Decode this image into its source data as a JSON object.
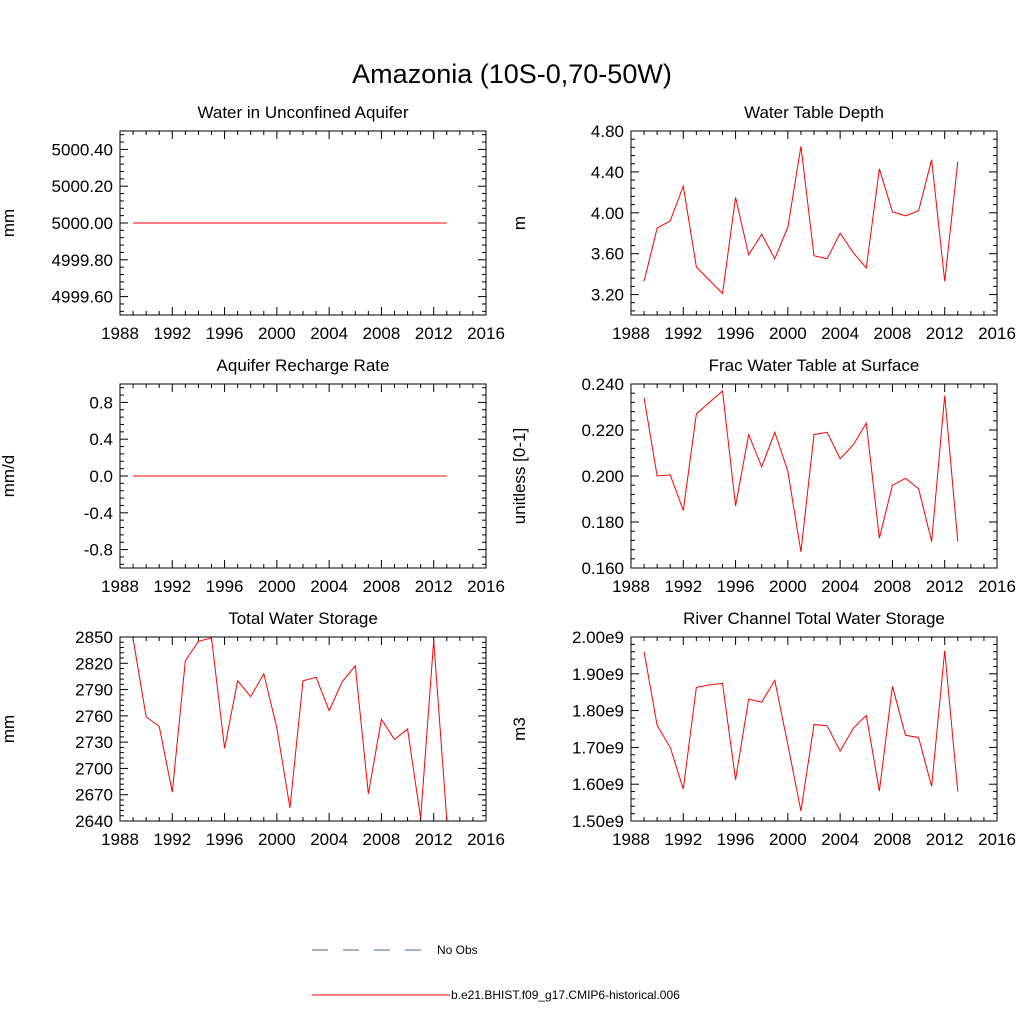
{
  "figure_title": "Amazonia (10S-0,70-50W)",
  "colors": {
    "model": "#ff0000",
    "obs": "#4f5fa8",
    "axis": "#000000"
  },
  "legend": {
    "obs_label": "No Obs",
    "model_label": "b.e21.BHIST.f09_g17.CMIP6-historical.006"
  },
  "chart_data": [
    {
      "type": "line",
      "title": "Water in Unconfined Aquifer",
      "ylabel": "mm",
      "xlim": [
        1988,
        2016
      ],
      "xticks": [
        "1988",
        "1992",
        "1996",
        "2000",
        "2004",
        "2008",
        "2012",
        "2016"
      ],
      "ylim": [
        4999.5,
        5000.5
      ],
      "yticks": [
        4999.6,
        4999.8,
        5000.0,
        5000.2,
        5000.4
      ],
      "ydecimals": 2,
      "x": [
        1989,
        1990,
        1991,
        1992,
        1993,
        1994,
        1995,
        1996,
        1997,
        1998,
        1999,
        2000,
        2001,
        2002,
        2003,
        2004,
        2005,
        2006,
        2007,
        2008,
        2009,
        2010,
        2011,
        2012,
        2013
      ],
      "series": [
        {
          "name": "b.e21.BHIST.f09_g17.CMIP6-historical.006",
          "values": [
            5000,
            5000,
            5000,
            5000,
            5000,
            5000,
            5000,
            5000,
            5000,
            5000,
            5000,
            5000,
            5000,
            5000,
            5000,
            5000,
            5000,
            5000,
            5000,
            5000,
            5000,
            5000,
            5000,
            5000,
            5000
          ]
        }
      ]
    },
    {
      "type": "line",
      "title": "Water Table Depth",
      "ylabel": "m",
      "xlim": [
        1988,
        2016
      ],
      "xticks": [
        "1988",
        "1992",
        "1996",
        "2000",
        "2004",
        "2008",
        "2012",
        "2016"
      ],
      "ylim": [
        3.0,
        4.8
      ],
      "yticks": [
        3.2,
        3.6,
        4.0,
        4.4,
        4.8
      ],
      "ydecimals": 2,
      "x": [
        1989,
        1990,
        1991,
        1992,
        1993,
        1994,
        1995,
        1996,
        1997,
        1998,
        1999,
        2000,
        2001,
        2002,
        2003,
        2004,
        2005,
        2006,
        2007,
        2008,
        2009,
        2010,
        2011,
        2012,
        2013
      ],
      "series": [
        {
          "name": "b.e21.BHIST.f09_g17.CMIP6-historical.006",
          "values": [
            3.33,
            3.85,
            3.92,
            4.26,
            3.47,
            3.34,
            3.21,
            4.15,
            3.59,
            3.79,
            3.55,
            3.86,
            4.65,
            3.58,
            3.55,
            3.8,
            3.61,
            3.46,
            4.43,
            4.01,
            3.97,
            4.02,
            4.52,
            3.33,
            4.5
          ]
        }
      ]
    },
    {
      "type": "line",
      "title": "Aquifer Recharge Rate",
      "ylabel": "mm/d",
      "xlim": [
        1988,
        2016
      ],
      "xticks": [
        "1988",
        "1992",
        "1996",
        "2000",
        "2004",
        "2008",
        "2012",
        "2016"
      ],
      "ylim": [
        -1.0,
        1.0
      ],
      "yticks": [
        -0.8,
        -0.4,
        0.0,
        0.4,
        0.8
      ],
      "ydecimals": 1,
      "x": [
        1989,
        1990,
        1991,
        1992,
        1993,
        1994,
        1995,
        1996,
        1997,
        1998,
        1999,
        2000,
        2001,
        2002,
        2003,
        2004,
        2005,
        2006,
        2007,
        2008,
        2009,
        2010,
        2011,
        2012,
        2013
      ],
      "series": [
        {
          "name": "b.e21.BHIST.f09_g17.CMIP6-historical.006",
          "values": [
            0,
            0,
            0,
            0,
            0,
            0,
            0,
            0,
            0,
            0,
            0,
            0,
            0,
            0,
            0,
            0,
            0,
            0,
            0,
            0,
            0,
            0,
            0,
            0,
            0
          ]
        }
      ]
    },
    {
      "type": "line",
      "title": "Frac Water Table at Surface",
      "ylabel": "unitless [0-1]",
      "xlim": [
        1988,
        2016
      ],
      "xticks": [
        "1988",
        "1992",
        "1996",
        "2000",
        "2004",
        "2008",
        "2012",
        "2016"
      ],
      "ylim": [
        0.16,
        0.24
      ],
      "yticks": [
        0.16,
        0.18,
        0.2,
        0.22,
        0.24
      ],
      "ydecimals": 3,
      "x": [
        1989,
        1990,
        1991,
        1992,
        1993,
        1994,
        1995,
        1996,
        1997,
        1998,
        1999,
        2000,
        2001,
        2002,
        2003,
        2004,
        2005,
        2006,
        2007,
        2008,
        2009,
        2010,
        2011,
        2012,
        2013
      ],
      "series": [
        {
          "name": "b.e21.BHIST.f09_g17.CMIP6-historical.006",
          "values": [
            0.234,
            0.2,
            0.2005,
            0.185,
            0.227,
            0.232,
            0.237,
            0.187,
            0.218,
            0.204,
            0.219,
            0.202,
            0.167,
            0.218,
            0.219,
            0.2075,
            0.2135,
            0.223,
            0.173,
            0.196,
            0.199,
            0.1945,
            0.1715,
            0.235,
            0.1715
          ]
        }
      ]
    },
    {
      "type": "line",
      "title": "Total Water Storage",
      "ylabel": "mm",
      "xlim": [
        1988,
        2016
      ],
      "xticks": [
        "1988",
        "1992",
        "1996",
        "2000",
        "2004",
        "2008",
        "2012",
        "2016"
      ],
      "ylim": [
        2640,
        2850
      ],
      "yticks": [
        2640,
        2670,
        2700,
        2730,
        2760,
        2790,
        2820,
        2850
      ],
      "ydecimals": 0,
      "x": [
        1989,
        1990,
        1991,
        1992,
        1993,
        1994,
        1995,
        1996,
        1997,
        1998,
        1999,
        2000,
        2001,
        2002,
        2003,
        2004,
        2005,
        2006,
        2007,
        2008,
        2009,
        2010,
        2011,
        2012,
        2013
      ],
      "series": [
        {
          "name": "b.e21.BHIST.f09_g17.CMIP6-historical.006",
          "values": [
            2848,
            2759,
            2748,
            2673,
            2823,
            2845,
            2849,
            2723,
            2800,
            2782,
            2808,
            2746,
            2655,
            2800,
            2804,
            2766,
            2799,
            2817,
            2671,
            2756,
            2733,
            2745,
            2643,
            2846,
            2641
          ]
        }
      ]
    },
    {
      "type": "line",
      "title": "River Channel Total Water Storage",
      "ylabel": "m3",
      "xlim": [
        1988,
        2016
      ],
      "xticks": [
        "1988",
        "1992",
        "1996",
        "2000",
        "2004",
        "2008",
        "2012",
        "2016"
      ],
      "ylim": [
        1500000000.0,
        2000000000.0
      ],
      "yticks": [
        "1.50e9",
        "1.60e9",
        "1.70e9",
        "1.80e9",
        "1.90e9",
        "2.00e9"
      ],
      "ydecimals": 2,
      "x": [
        1989,
        1990,
        1991,
        1992,
        1993,
        1994,
        1995,
        1996,
        1997,
        1998,
        1999,
        2000,
        2001,
        2002,
        2003,
        2004,
        2005,
        2006,
        2007,
        2008,
        2009,
        2010,
        2011,
        2012,
        2013
      ],
      "series": [
        {
          "name": "b.e21.BHIST.f09_g17.CMIP6-historical.006",
          "values": [
            1960000000.0,
            1760000000.0,
            1700000000.0,
            1587000000.0,
            1863000000.0,
            1870000000.0,
            1874000000.0,
            1612000000.0,
            1831000000.0,
            1823000000.0,
            1882000000.0,
            1707000000.0,
            1527000000.0,
            1762000000.0,
            1759000000.0,
            1690000000.0,
            1752000000.0,
            1787000000.0,
            1581000000.0,
            1866000000.0,
            1733000000.0,
            1727000000.0,
            1594000000.0,
            1963000000.0,
            1580000000.0
          ]
        }
      ]
    }
  ]
}
